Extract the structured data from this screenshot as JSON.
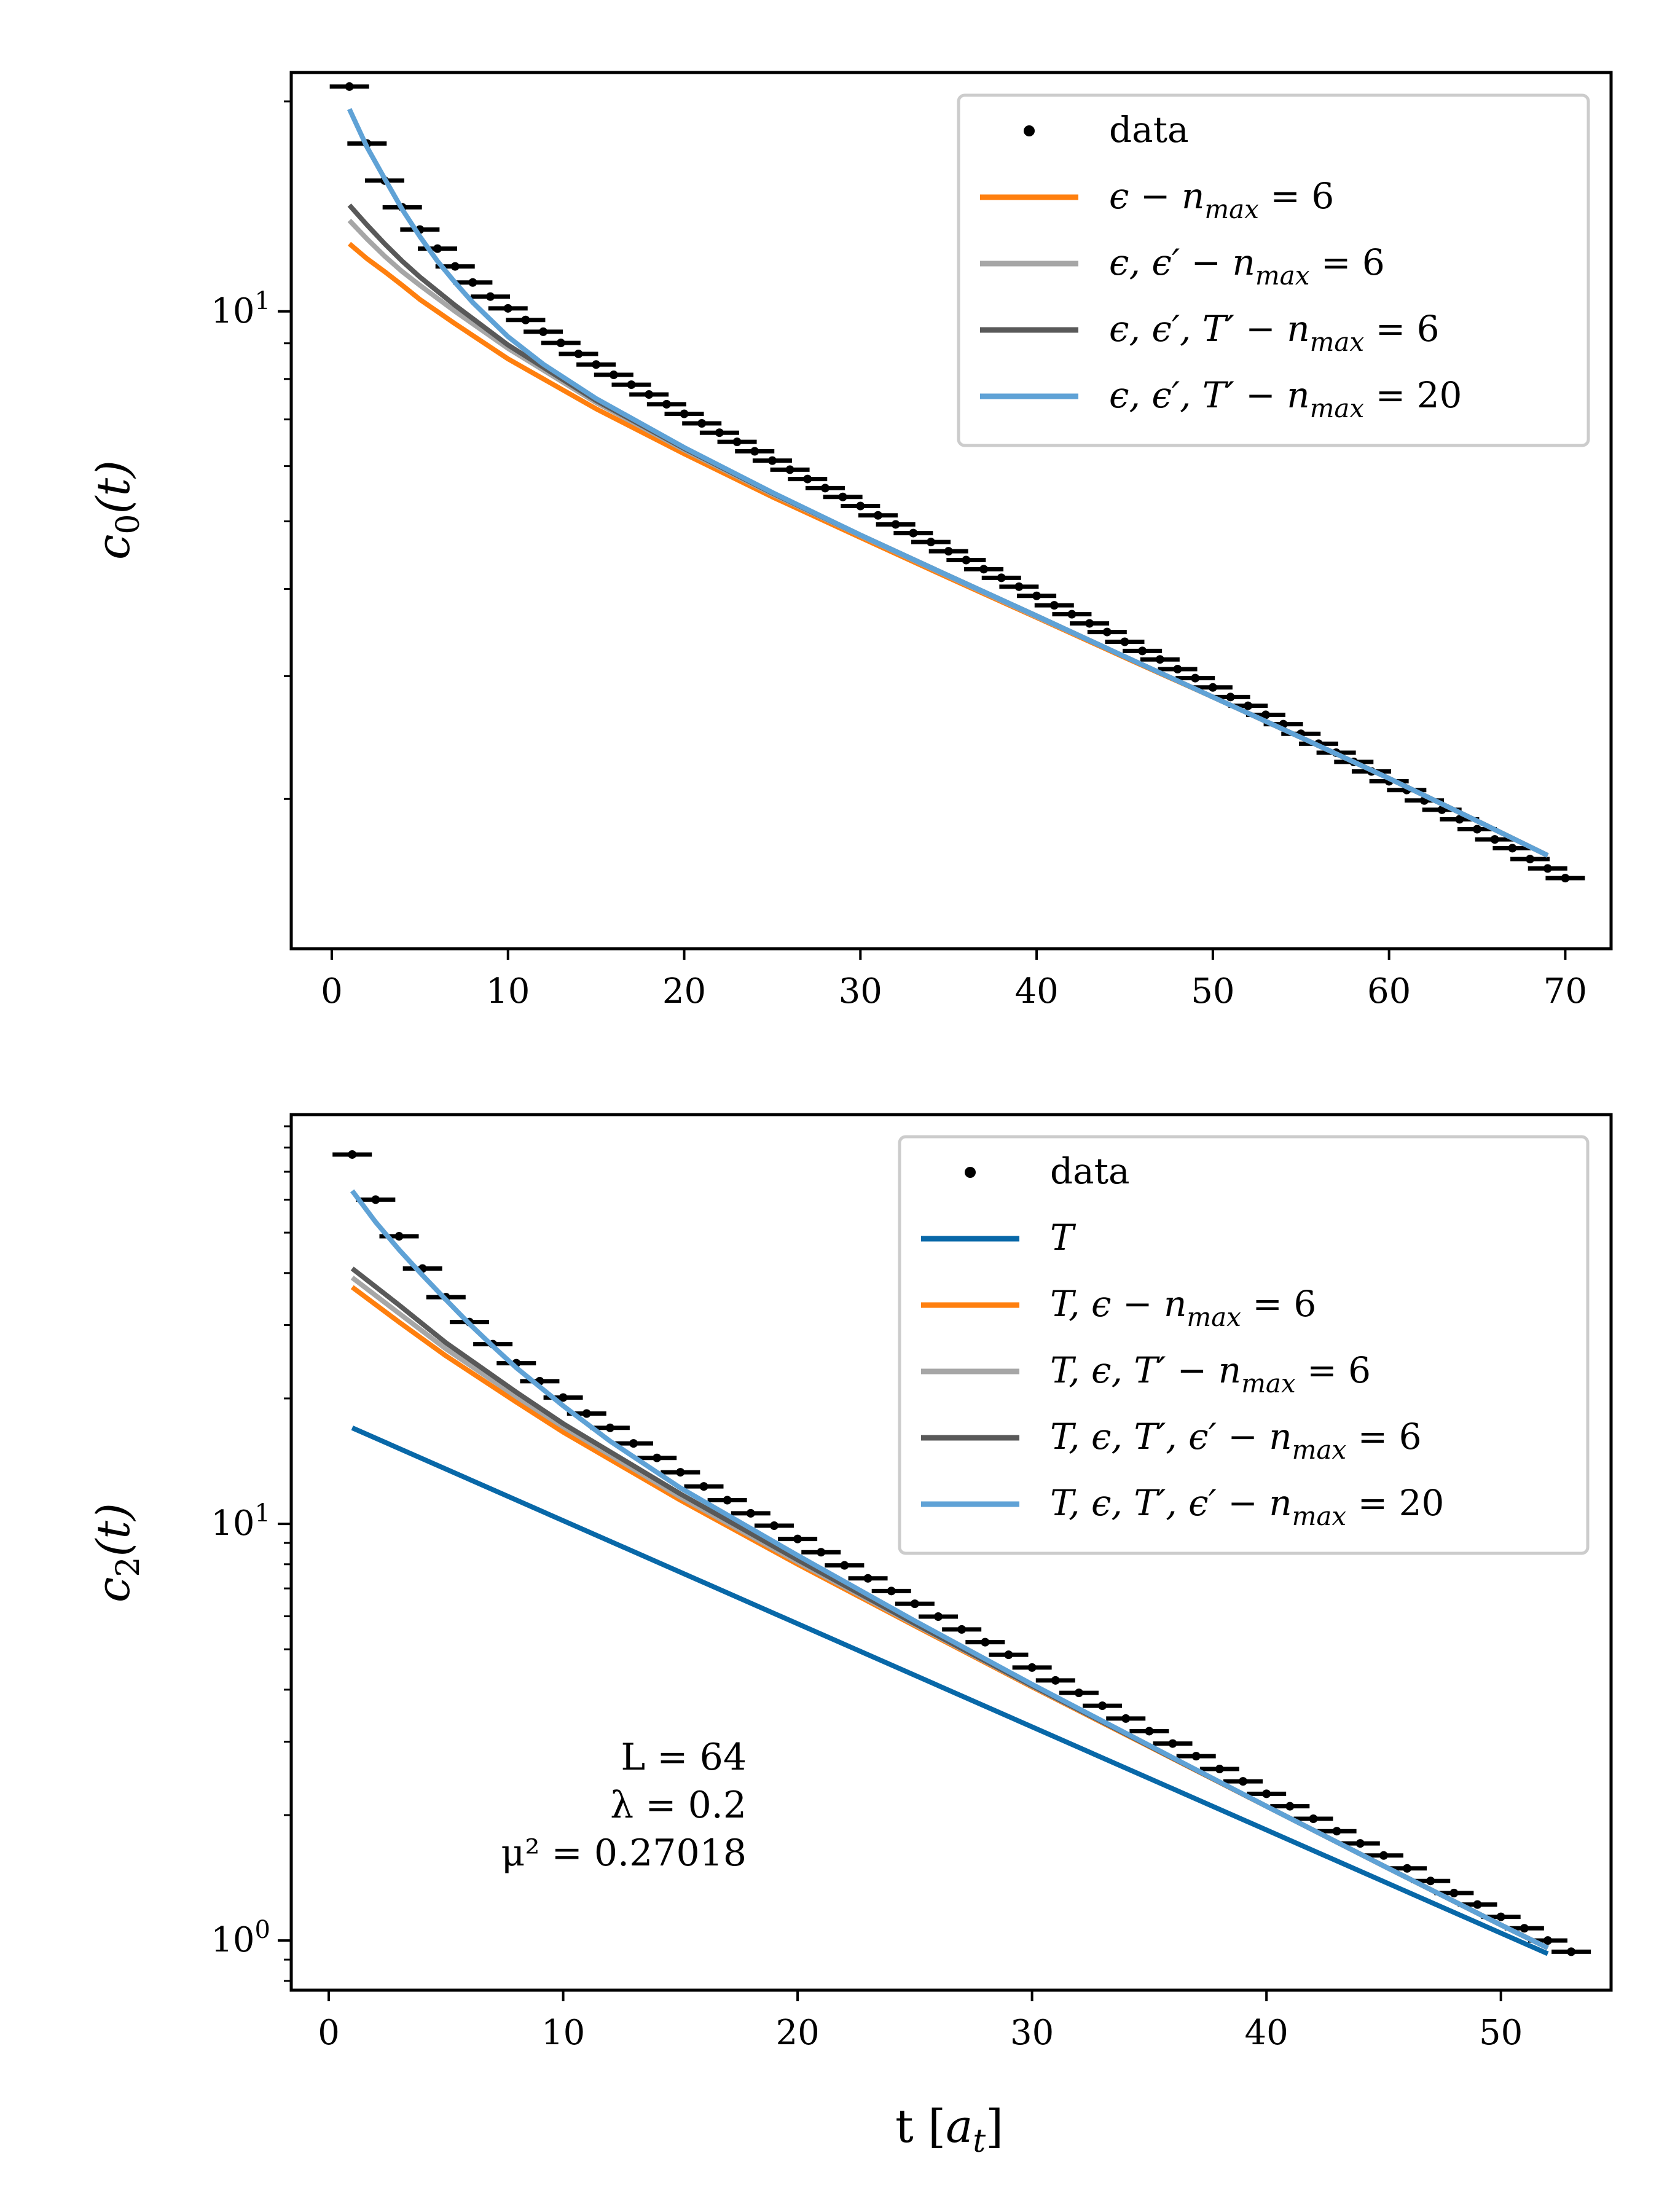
{
  "chart_data": [
    {
      "type": "line",
      "ylabel": "c_0(t)",
      "xlabel": "",
      "x_ticks": [
        "0",
        "10",
        "20",
        "30",
        "40",
        "50",
        "60",
        "70"
      ],
      "y_scale": "log",
      "y_tick_labels": [
        {
          "base": "10",
          "exp": "1"
        }
      ],
      "xlim": [
        -2.3,
        72.6
      ],
      "ylim": [
        1.22,
        22
      ],
      "legend_position": "upper right",
      "series": [
        {
          "name": "data",
          "kind": "data",
          "color": "#000000",
          "x": [
            1,
            2,
            3,
            4,
            5,
            6,
            7,
            8,
            9,
            10,
            11,
            12,
            13,
            14,
            15,
            16,
            17,
            18,
            19,
            20,
            21,
            22,
            23,
            24,
            25,
            26,
            27,
            28,
            29,
            30,
            31,
            32,
            33,
            34,
            35,
            36,
            37,
            38,
            39,
            40,
            41,
            42,
            43,
            44,
            45,
            46,
            47,
            48,
            49,
            50,
            51,
            52,
            53,
            54,
            55,
            56,
            57,
            58,
            59,
            60,
            61,
            62,
            63,
            64,
            65,
            66,
            67,
            68,
            69,
            70
          ],
          "y": [
            21,
            17.4,
            15.4,
            14.1,
            13.1,
            12.3,
            11.6,
            11.0,
            10.5,
            10.1,
            9.72,
            9.35,
            9.01,
            8.69,
            8.39,
            8.11,
            7.85,
            7.6,
            7.36,
            7.13,
            6.91,
            6.7,
            6.5,
            6.3,
            6.11,
            5.93,
            5.75,
            5.58,
            5.42,
            5.26,
            5.1,
            4.95,
            4.81,
            4.67,
            4.53,
            4.4,
            4.27,
            4.15,
            4.03,
            3.91,
            3.79,
            3.68,
            3.57,
            3.47,
            3.36,
            3.26,
            3.17,
            3.07,
            2.98,
            2.89,
            2.8,
            2.72,
            2.64,
            2.56,
            2.48,
            2.4,
            2.33,
            2.26,
            2.19,
            2.12,
            2.06,
            1.99,
            1.93,
            1.87,
            1.81,
            1.75,
            1.7,
            1.64,
            1.59,
            1.54
          ]
        },
        {
          "name": "ε − n_max = 6",
          "kind": "fit",
          "color": "#ff7f0e",
          "lw": 8,
          "x": [
            1,
            2,
            3,
            4,
            5,
            7,
            10,
            15,
            20,
            25,
            30,
            35,
            40,
            45,
            50,
            55,
            60,
            65,
            69
          ],
          "y": [
            12.5,
            11.9,
            11.4,
            10.9,
            10.4,
            9.6,
            8.55,
            7.25,
            6.25,
            5.42,
            4.74,
            4.15,
            3.64,
            3.19,
            2.8,
            2.45,
            2.14,
            1.86,
            1.66
          ]
        },
        {
          "name": "ε, ε′ − n_max = 6",
          "kind": "fit",
          "color": "#a6a6a6",
          "lw": 8,
          "x": [
            1,
            2,
            3,
            4,
            5,
            7,
            10,
            15,
            20,
            25,
            30,
            35,
            40,
            45,
            50,
            55,
            60,
            65,
            69
          ],
          "y": [
            13.5,
            12.7,
            12.0,
            11.4,
            10.9,
            10.0,
            8.85,
            7.4,
            6.33,
            5.47,
            4.77,
            4.17,
            3.65,
            3.2,
            2.8,
            2.45,
            2.14,
            1.86,
            1.66
          ]
        },
        {
          "name": "ε, ε′, T′ − n_max = 6",
          "kind": "fit",
          "color": "#595959",
          "lw": 8,
          "x": [
            1,
            2,
            3,
            4,
            5,
            7,
            10,
            15,
            20,
            25,
            30,
            35,
            40,
            45,
            50,
            55,
            60,
            65,
            69
          ],
          "y": [
            14.2,
            13.3,
            12.5,
            11.8,
            11.2,
            10.2,
            8.95,
            7.45,
            6.36,
            5.49,
            4.78,
            4.18,
            3.66,
            3.2,
            2.8,
            2.45,
            2.14,
            1.86,
            1.66
          ]
        },
        {
          "name": "ε, ε′, T′ − n_max = 20",
          "kind": "fit",
          "color": "#5fa2d6",
          "lw": 8,
          "x": [
            1,
            2,
            3,
            4,
            5,
            6,
            7,
            8,
            10,
            12,
            15,
            20,
            25,
            30,
            35,
            40,
            45,
            50,
            55,
            60,
            65,
            69
          ],
          "y": [
            19.5,
            17.2,
            15.5,
            14.0,
            12.8,
            11.8,
            11.0,
            10.3,
            9.2,
            8.4,
            7.5,
            6.38,
            5.5,
            4.78,
            4.18,
            3.66,
            3.2,
            2.8,
            2.45,
            2.14,
            1.86,
            1.66
          ]
        }
      ]
    },
    {
      "type": "line",
      "ylabel": "c_2(t)",
      "xlabel": "t [a_t]",
      "x_ticks": [
        "0",
        "10",
        "20",
        "30",
        "40",
        "50"
      ],
      "y_scale": "log",
      "y_tick_labels": [
        {
          "base": "10",
          "exp": "0"
        },
        {
          "base": "10",
          "exp": "1"
        }
      ],
      "xlim": [
        -1.6,
        54.7
      ],
      "ylim": [
        0.76,
        96
      ],
      "legend_position": "upper right",
      "annotations": [
        "L = 64",
        "λ = 0.2",
        "μ² = 0.27018"
      ],
      "series": [
        {
          "name": "data",
          "kind": "data",
          "color": "#000000",
          "x": [
            1,
            2,
            3,
            4,
            5,
            6,
            7,
            8,
            9,
            10,
            11,
            12,
            13,
            14,
            15,
            16,
            17,
            18,
            19,
            20,
            21,
            22,
            23,
            24,
            25,
            26,
            27,
            28,
            29,
            30,
            31,
            32,
            33,
            34,
            35,
            36,
            37,
            38,
            39,
            40,
            41,
            42,
            43,
            44,
            45,
            46,
            47,
            48,
            49,
            50,
            51,
            52,
            53
          ],
          "y": [
            77,
            60,
            49,
            41,
            35,
            30.5,
            27,
            24.3,
            22.0,
            20.1,
            18.4,
            17.0,
            15.6,
            14.4,
            13.3,
            12.3,
            11.4,
            10.6,
            9.9,
            9.2,
            8.55,
            7.95,
            7.4,
            6.9,
            6.43,
            5.99,
            5.58,
            5.2,
            4.85,
            4.52,
            4.21,
            3.93,
            3.66,
            3.41,
            3.18,
            2.97,
            2.77,
            2.58,
            2.41,
            2.25,
            2.1,
            1.96,
            1.83,
            1.71,
            1.6,
            1.49,
            1.39,
            1.3,
            1.22,
            1.14,
            1.07,
            1.0,
            0.94
          ]
        },
        {
          "name": "T",
          "kind": "fit",
          "color": "#0868a8",
          "lw": 8,
          "x": [
            1,
            52
          ],
          "y": [
            17.0,
            0.93
          ]
        },
        {
          "name": "T, ε − n_max = 6",
          "kind": "fit",
          "color": "#ff7f0e",
          "lw": 8,
          "x": [
            1,
            3,
            5,
            8,
            10,
            15,
            20,
            25,
            30,
            35,
            40,
            45,
            50,
            52
          ],
          "y": [
            37,
            30.5,
            25.3,
            19.6,
            16.6,
            11.4,
            8.0,
            5.69,
            4.06,
            2.92,
            2.1,
            1.51,
            1.09,
            0.96
          ]
        },
        {
          "name": "T, ε, T′ − n_max = 6",
          "kind": "fit",
          "color": "#a6a6a6",
          "lw": 8,
          "x": [
            1,
            3,
            5,
            8,
            10,
            15,
            20,
            25,
            30,
            35,
            40,
            45,
            50,
            52
          ],
          "y": [
            39,
            32,
            26.3,
            20.2,
            17.1,
            11.6,
            8.1,
            5.73,
            4.08,
            2.93,
            2.1,
            1.51,
            1.09,
            0.96
          ]
        },
        {
          "name": "T, ε, T′, ε′ − n_max = 6",
          "kind": "fit",
          "color": "#595959",
          "lw": 8,
          "x": [
            1,
            3,
            5,
            8,
            10,
            15,
            20,
            25,
            30,
            35,
            40,
            45,
            50,
            52
          ],
          "y": [
            41,
            33.5,
            27.2,
            20.7,
            17.4,
            11.8,
            8.2,
            5.76,
            4.09,
            2.93,
            2.1,
            1.51,
            1.09,
            0.96
          ]
        },
        {
          "name": "T, ε, T′, ε′ − n_max = 20",
          "kind": "fit",
          "color": "#5fa2d6",
          "lw": 8,
          "x": [
            1,
            2,
            3,
            4,
            5,
            6,
            7,
            8,
            10,
            12,
            15,
            20,
            25,
            30,
            35,
            40,
            45,
            50,
            52
          ],
          "y": [
            63,
            53,
            45.5,
            39.5,
            34.5,
            30.2,
            26.7,
            23.7,
            19.2,
            15.8,
            12.2,
            8.4,
            5.85,
            4.12,
            2.94,
            2.1,
            1.51,
            1.09,
            0.96
          ]
        }
      ]
    }
  ],
  "legends": [
    [
      {
        "label": "data"
      },
      {
        "parts": [
          [
            "ϵ − ",
            0
          ],
          [
            "n",
            1
          ],
          [
            "max",
            2
          ],
          [
            " = 6",
            0
          ]
        ]
      },
      {
        "parts": [
          [
            "ϵ, ϵ′ − ",
            0
          ],
          [
            "n",
            1
          ],
          [
            "max",
            2
          ],
          [
            " = 6",
            0
          ]
        ]
      },
      {
        "parts": [
          [
            "ϵ, ϵ′, T′ − ",
            0
          ],
          [
            "n",
            1
          ],
          [
            "max",
            2
          ],
          [
            " = 6",
            0
          ]
        ]
      },
      {
        "parts": [
          [
            "ϵ, ϵ′, T′ − ",
            0
          ],
          [
            "n",
            1
          ],
          [
            "max",
            2
          ],
          [
            " = 20",
            0
          ]
        ]
      }
    ],
    [
      {
        "label": "data"
      },
      {
        "parts": [
          [
            "T",
            0
          ]
        ]
      },
      {
        "parts": [
          [
            "T, ϵ − ",
            0
          ],
          [
            "n",
            1
          ],
          [
            "max",
            2
          ],
          [
            " = 6",
            0
          ]
        ]
      },
      {
        "parts": [
          [
            "T, ϵ, T′ − ",
            0
          ],
          [
            "n",
            1
          ],
          [
            "max",
            2
          ],
          [
            " = 6",
            0
          ]
        ]
      },
      {
        "parts": [
          [
            "T, ϵ, T′, ϵ′ − ",
            0
          ],
          [
            "n",
            1
          ],
          [
            "max",
            2
          ],
          [
            " = 6",
            0
          ]
        ]
      },
      {
        "parts": [
          [
            "T, ϵ, T′, ϵ′ − ",
            0
          ],
          [
            "n",
            1
          ],
          [
            "max",
            2
          ],
          [
            " = 20",
            0
          ]
        ]
      }
    ]
  ],
  "axis_titles": {
    "top_y": {
      "main": "c",
      "sub": "0",
      "rest": "(t)"
    },
    "bottom_y": {
      "main": "c",
      "sub": "2",
      "rest": "(t)"
    },
    "bottom_x": {
      "pre": "t [",
      "main": "a",
      "sub": "t",
      "post": "]"
    }
  }
}
